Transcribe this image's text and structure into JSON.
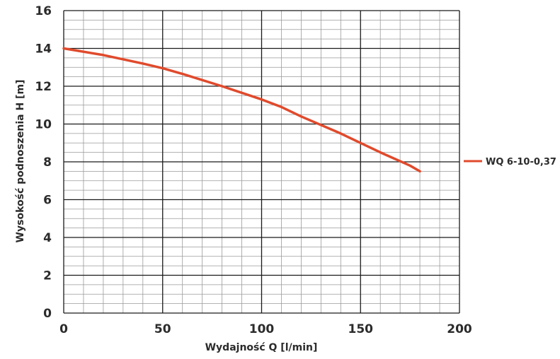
{
  "chart_data": {
    "type": "line",
    "xlabel": "Wydajność Q [l/min]",
    "ylabel": "Wysokość podnoszenia H [m]",
    "xlim": [
      0,
      200
    ],
    "ylim": [
      0,
      16
    ],
    "x_ticks": [
      "0",
      "50",
      "100",
      "150",
      "200"
    ],
    "y_ticks": [
      "0",
      "2",
      "4",
      "6",
      "8",
      "10",
      "12",
      "14",
      "16"
    ],
    "grid": true,
    "legend_position": "right",
    "series": [
      {
        "name": "WQ 6-10-0,37",
        "color": "#e04a2c",
        "x": [
          0,
          20,
          40,
          50,
          60,
          80,
          100,
          110,
          120,
          140,
          150,
          160,
          175,
          180
        ],
        "y": [
          14.0,
          13.65,
          13.2,
          12.95,
          12.65,
          12.0,
          11.3,
          10.9,
          10.4,
          9.5,
          9.0,
          8.5,
          7.8,
          7.5
        ]
      }
    ]
  }
}
